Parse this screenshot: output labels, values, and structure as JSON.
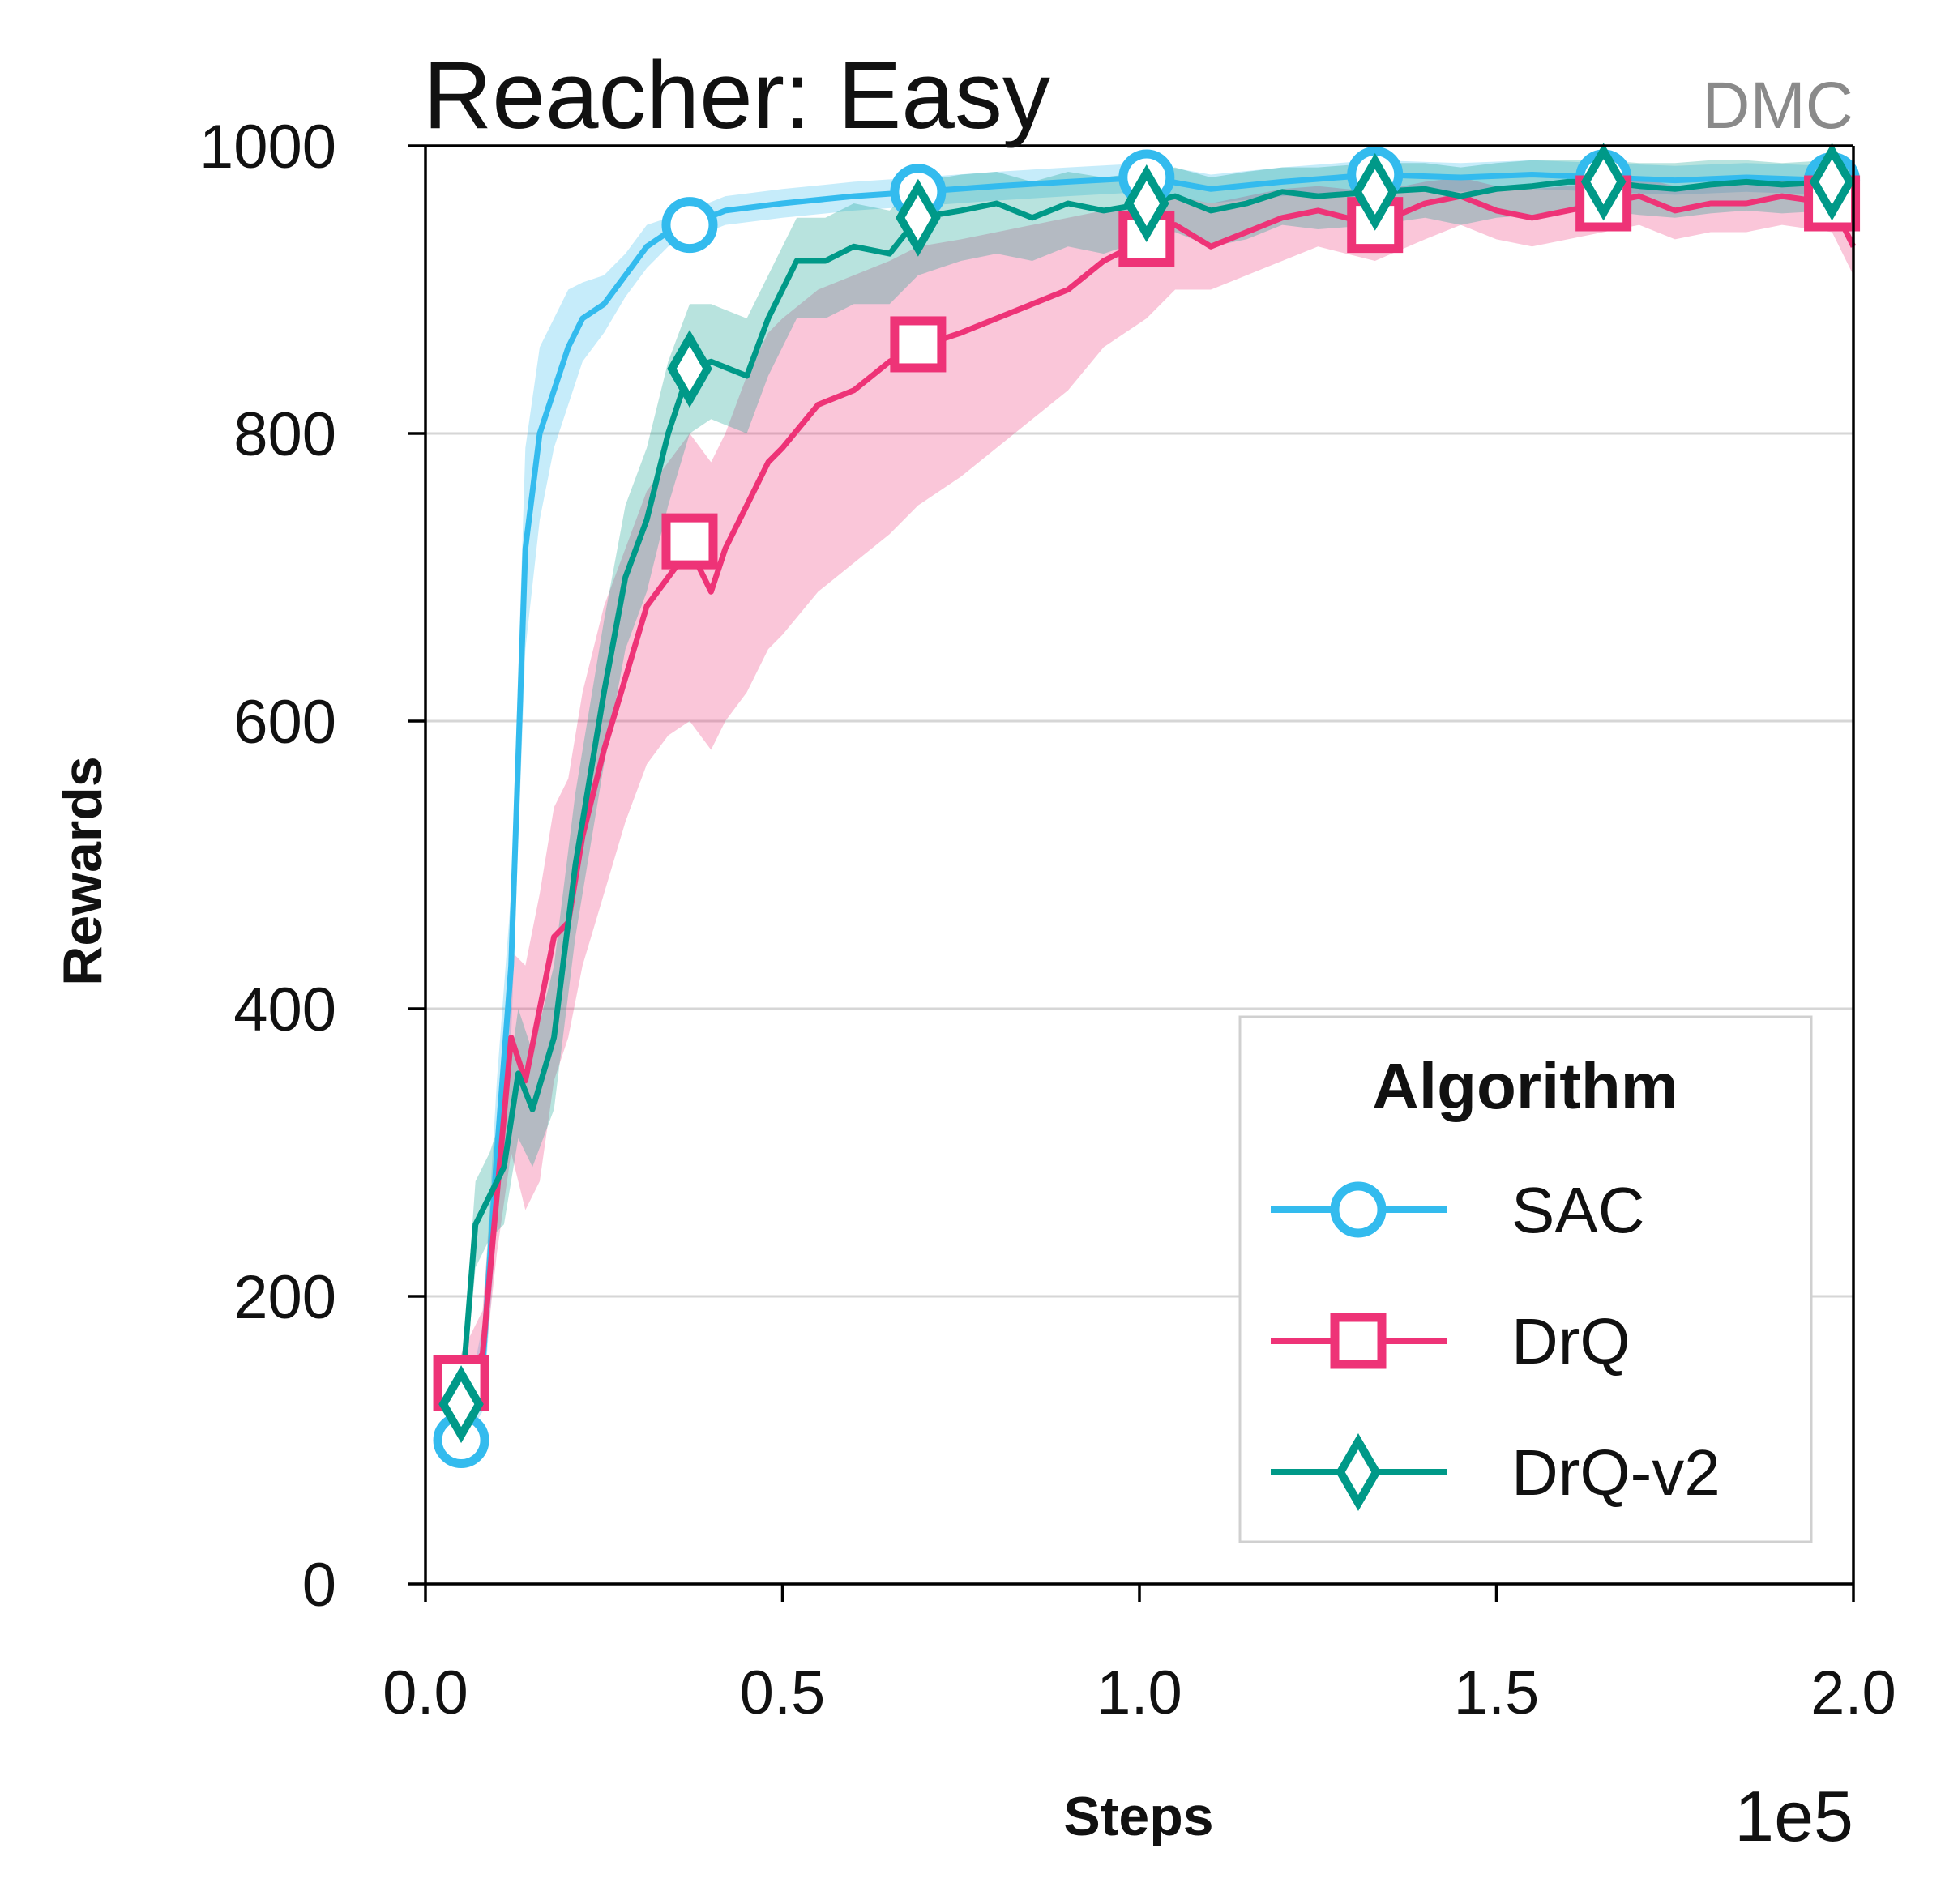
{
  "chart_data": {
    "type": "line",
    "title": "Reacher: Easy",
    "corner_label": "DMC",
    "xlabel": "Steps",
    "ylabel": "Rewards",
    "x_exponent_label": "1e5",
    "xlim": [
      0.0,
      2.0
    ],
    "ylim": [
      0,
      1000
    ],
    "x_ticks": [
      "0.0",
      "0.5",
      "1.0",
      "1.5",
      "2.0"
    ],
    "y_ticks": [
      "0",
      "200",
      "400",
      "600",
      "800",
      "1000"
    ],
    "grid": "horizontal",
    "legend": {
      "title": "Algorithm",
      "placement": "lower-right"
    },
    "series": [
      {
        "name": "SAC",
        "color": "#33BBEE",
        "marker": "circle",
        "x": [
          0.05,
          0.08,
          0.1,
          0.12,
          0.14,
          0.16,
          0.18,
          0.2,
          0.22,
          0.25,
          0.28,
          0.31,
          0.34,
          0.37,
          0.42,
          0.5,
          0.6,
          0.69,
          0.8,
          0.9,
          1.01,
          1.1,
          1.2,
          1.33,
          1.45,
          1.55,
          1.65,
          1.75,
          1.85,
          1.97,
          2.0
        ],
        "y": [
          100,
          150,
          300,
          430,
          720,
          800,
          830,
          860,
          880,
          890,
          910,
          930,
          940,
          945,
          955,
          960,
          965,
          968,
          972,
          975,
          978,
          970,
          975,
          980,
          978,
          980,
          978,
          976,
          978,
          976,
          977
        ],
        "lower": [
          95,
          120,
          250,
          380,
          650,
          740,
          790,
          820,
          850,
          870,
          895,
          915,
          930,
          935,
          945,
          950,
          955,
          958,
          962,
          965,
          968,
          960,
          965,
          970,
          968,
          970,
          968,
          966,
          968,
          966,
          967
        ],
        "upper": [
          105,
          180,
          350,
          480,
          790,
          860,
          880,
          900,
          905,
          910,
          925,
          945,
          950,
          955,
          965,
          970,
          975,
          978,
          982,
          985,
          988,
          980,
          985,
          990,
          988,
          990,
          988,
          986,
          988,
          986,
          987
        ],
        "marker_x": [
          0.05,
          0.37,
          0.69,
          1.01,
          1.33,
          1.65,
          1.97
        ],
        "marker_y": [
          100,
          945,
          968,
          978,
          980,
          978,
          976
        ]
      },
      {
        "name": "DrQ",
        "color": "#EE3377",
        "marker": "square",
        "x": [
          0.05,
          0.08,
          0.1,
          0.12,
          0.14,
          0.16,
          0.18,
          0.2,
          0.22,
          0.25,
          0.28,
          0.31,
          0.34,
          0.37,
          0.4,
          0.42,
          0.45,
          0.48,
          0.5,
          0.55,
          0.6,
          0.65,
          0.69,
          0.75,
          0.8,
          0.85,
          0.9,
          0.95,
          1.01,
          1.05,
          1.1,
          1.15,
          1.2,
          1.25,
          1.33,
          1.4,
          1.45,
          1.5,
          1.55,
          1.6,
          1.65,
          1.7,
          1.75,
          1.8,
          1.85,
          1.9,
          1.97,
          2.0
        ],
        "y": [
          140,
          160,
          270,
          380,
          350,
          400,
          450,
          460,
          520,
          580,
          630,
          680,
          700,
          720,
          690,
          720,
          750,
          780,
          790,
          820,
          830,
          850,
          860,
          870,
          880,
          890,
          900,
          920,
          935,
          945,
          930,
          940,
          950,
          955,
          945,
          960,
          965,
          955,
          950,
          955,
          960,
          965,
          955,
          960,
          960,
          965,
          960,
          930
        ],
        "lower": [
          120,
          140,
          230,
          300,
          260,
          280,
          350,
          380,
          430,
          480,
          530,
          570,
          590,
          600,
          580,
          600,
          620,
          650,
          660,
          690,
          710,
          730,
          750,
          770,
          790,
          810,
          830,
          860,
          880,
          900,
          900,
          910,
          920,
          930,
          920,
          935,
          945,
          935,
          930,
          935,
          940,
          945,
          935,
          940,
          940,
          945,
          940,
          910
        ],
        "upper": [
          160,
          190,
          320,
          440,
          430,
          480,
          540,
          560,
          620,
          680,
          720,
          760,
          780,
          800,
          780,
          800,
          840,
          870,
          880,
          900,
          910,
          920,
          930,
          935,
          940,
          945,
          950,
          955,
          960,
          965,
          960,
          965,
          970,
          972,
          968,
          975,
          978,
          972,
          970,
          972,
          975,
          978,
          972,
          975,
          975,
          978,
          975,
          955
        ],
        "marker_x": [
          0.05,
          0.37,
          0.69,
          1.01,
          1.33,
          1.65,
          1.97
        ],
        "marker_y": [
          140,
          725,
          862,
          935,
          945,
          960,
          960
        ]
      },
      {
        "name": "DrQ-v2",
        "color": "#009988",
        "marker": "diamond",
        "x": [
          0.05,
          0.07,
          0.09,
          0.11,
          0.13,
          0.15,
          0.18,
          0.21,
          0.25,
          0.28,
          0.31,
          0.34,
          0.37,
          0.4,
          0.45,
          0.48,
          0.52,
          0.56,
          0.6,
          0.65,
          0.69,
          0.75,
          0.8,
          0.85,
          0.9,
          0.95,
          1.01,
          1.05,
          1.1,
          1.15,
          1.2,
          1.25,
          1.33,
          1.4,
          1.45,
          1.5,
          1.55,
          1.6,
          1.65,
          1.7,
          1.75,
          1.8,
          1.85,
          1.9,
          1.97,
          2.0
        ],
        "y": [
          125,
          250,
          270,
          290,
          355,
          330,
          380,
          500,
          620,
          700,
          740,
          800,
          845,
          850,
          840,
          880,
          920,
          920,
          930,
          925,
          950,
          955,
          960,
          950,
          960,
          955,
          960,
          965,
          955,
          960,
          968,
          965,
          968,
          970,
          965,
          970,
          972,
          975,
          975,
          972,
          970,
          973,
          975,
          973,
          975,
          975
        ],
        "lower": [
          110,
          220,
          240,
          250,
          310,
          290,
          330,
          450,
          570,
          650,
          690,
          750,
          800,
          810,
          800,
          840,
          880,
          880,
          890,
          890,
          910,
          920,
          925,
          920,
          930,
          925,
          935,
          940,
          930,
          935,
          945,
          942,
          945,
          950,
          945,
          950,
          952,
          955,
          955,
          952,
          950,
          953,
          955,
          953,
          955,
          955
        ],
        "upper": [
          140,
          280,
          300,
          330,
          400,
          370,
          430,
          550,
          670,
          750,
          790,
          850,
          890,
          890,
          880,
          910,
          950,
          950,
          960,
          955,
          975,
          980,
          982,
          975,
          982,
          978,
          982,
          985,
          978,
          982,
          985,
          985,
          988,
          988,
          985,
          988,
          990,
          990,
          990,
          988,
          988,
          990,
          990,
          988,
          990,
          990
        ],
        "marker_x": [
          0.05,
          0.37,
          0.69,
          1.01,
          1.33,
          1.65,
          1.97
        ],
        "marker_y": [
          125,
          845,
          950,
          960,
          968,
          975,
          975
        ]
      }
    ]
  }
}
